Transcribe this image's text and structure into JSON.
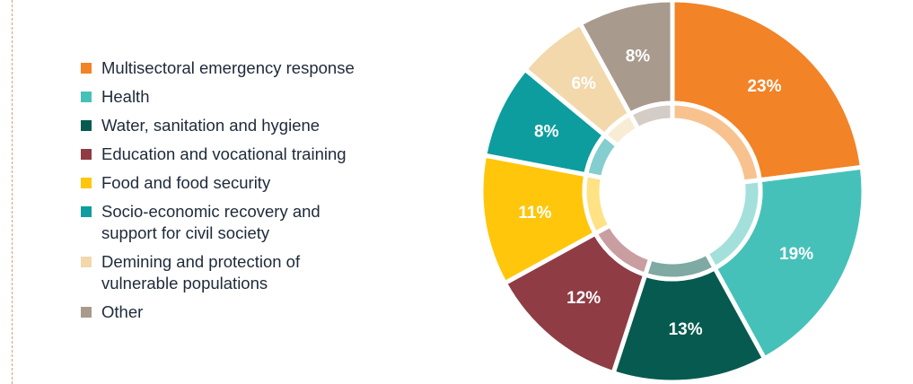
{
  "chart_data": {
    "type": "pie",
    "title": "",
    "legend_placement": "left",
    "categories": [
      "Multisectoral emergency response",
      "Health",
      "Water, sanitation and hygiene",
      "Education and vocational training",
      "Food and food security",
      "Socio-economic recovery and support for civil society",
      "Demining and protection of vulnerable populations",
      "Other"
    ],
    "legend_lines": [
      [
        "Multisectoral emergency response"
      ],
      [
        "Health"
      ],
      [
        "Water, sanitation and hygiene"
      ],
      [
        "Education and vocational training"
      ],
      [
        "Food and food security"
      ],
      [
        "Socio-economic recovery and",
        "support for civil society"
      ],
      [
        "Demining and protection of",
        "vulnerable populations"
      ],
      [
        "Other"
      ]
    ],
    "values": [
      23,
      19,
      13,
      12,
      11,
      8,
      6,
      8
    ],
    "value_labels": [
      "23%",
      "19%",
      "13%",
      "12%",
      "11%",
      "8%",
      "6%",
      "8%"
    ],
    "colors": [
      "#f28326",
      "#45c1b9",
      "#075a4f",
      "#8f3c45",
      "#ffc60b",
      "#0d9d9e",
      "#f2d8ab",
      "#a89a8d"
    ],
    "inner_ring_colors": [
      "#f8c28f",
      "#a3e0dc",
      "#7fa9a3",
      "#c99ea1",
      "#ffe284",
      "#85cecf",
      "#f9ecd5",
      "#d4ccc6"
    ]
  }
}
